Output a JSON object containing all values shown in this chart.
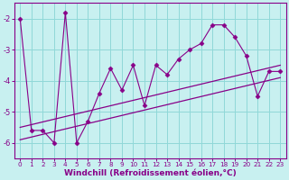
{
  "x_values": [
    0,
    1,
    2,
    3,
    4,
    5,
    6,
    7,
    8,
    9,
    10,
    11,
    12,
    13,
    14,
    15,
    16,
    17,
    18,
    19,
    20,
    21,
    22,
    23
  ],
  "y_values": [
    -2.0,
    -5.6,
    -5.6,
    -6.0,
    -1.8,
    -6.0,
    -5.3,
    -4.4,
    -3.6,
    -4.3,
    -3.5,
    -4.8,
    -3.5,
    -3.8,
    -3.3,
    -3.0,
    -2.8,
    -2.2,
    -2.2,
    -2.6,
    -3.2,
    -4.5,
    -3.7,
    -3.7
  ],
  "trend1_x": [
    0,
    23
  ],
  "trend1_y": [
    -5.5,
    -3.5
  ],
  "trend2_x": [
    0,
    23
  ],
  "trend2_y": [
    -5.9,
    -3.9
  ],
  "line_color": "#880088",
  "marker": "D",
  "marker_size": 2.5,
  "bg_color": "#c8f0f0",
  "grid_color": "#90d8d8",
  "axis_color": "#880088",
  "xlabel": "Windchill (Refroidissement éolien,°C)",
  "xlabel_fontsize": 6.5,
  "tick_fontsize": 6.0,
  "ylim": [
    -6.5,
    -1.5
  ],
  "xlim": [
    -0.5,
    23.5
  ],
  "yticks": [
    -6,
    -5,
    -4,
    -3,
    -2
  ],
  "xticks": [
    0,
    1,
    2,
    3,
    4,
    5,
    6,
    7,
    8,
    9,
    10,
    11,
    12,
    13,
    14,
    15,
    16,
    17,
    18,
    19,
    20,
    21,
    22,
    23
  ]
}
